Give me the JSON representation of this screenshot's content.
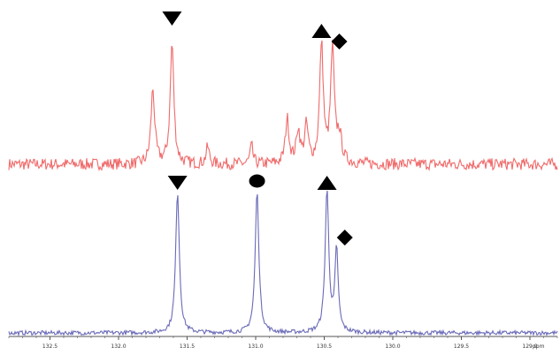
{
  "chart_data": {
    "type": "line",
    "title": "",
    "xlabel": "",
    "ylabel": "",
    "x_unit_label": "ppm",
    "x_reversed": true,
    "xlim": [
      132.8,
      128.8
    ],
    "x_ticks": [
      132.5,
      132.0,
      131.5,
      131.0,
      130.5,
      130.0,
      129.5,
      129.0
    ],
    "x_tick_labels": [
      "132.5",
      "132.0",
      "131.5",
      "131.0",
      "130.5",
      "130.0",
      "129.5",
      "129.0"
    ],
    "grid": false,
    "legend": "none",
    "colors": {
      "top_spectrum": "#f06a6a",
      "bottom_spectrum": "#6a6ab8",
      "markers": "#000000",
      "axis": "#555555"
    },
    "series": [
      {
        "role": "top-spectrum",
        "baseline": 0.0,
        "noise": 0.045,
        "peaks": [
          {
            "x": 131.75,
            "height": 0.57,
            "width": 0.016
          },
          {
            "x": 131.61,
            "height": 0.92,
            "width": 0.016
          },
          {
            "x": 131.35,
            "height": 0.13,
            "width": 0.014
          },
          {
            "x": 131.03,
            "height": 0.14,
            "width": 0.012
          },
          {
            "x": 130.77,
            "height": 0.34,
            "width": 0.016
          },
          {
            "x": 130.69,
            "height": 0.25,
            "width": 0.016
          },
          {
            "x": 130.63,
            "height": 0.28,
            "width": 0.016
          },
          {
            "x": 130.52,
            "height": 0.91,
            "width": 0.016
          },
          {
            "x": 130.44,
            "height": 0.86,
            "width": 0.016
          },
          {
            "x": 130.39,
            "height": 0.2,
            "width": 0.02
          }
        ],
        "markers": [
          {
            "shape": "triangle-down",
            "x": 131.61
          },
          {
            "shape": "triangle-up",
            "x": 130.52
          },
          {
            "shape": "diamond",
            "x": 130.39
          }
        ]
      },
      {
        "role": "bottom-spectrum",
        "baseline": 0.0,
        "noise": 0.015,
        "peaks": [
          {
            "x": 131.57,
            "height": 1.0,
            "width": 0.016
          },
          {
            "x": 130.99,
            "height": 1.0,
            "width": 0.016
          },
          {
            "x": 130.48,
            "height": 1.0,
            "width": 0.016
          },
          {
            "x": 130.41,
            "height": 0.58,
            "width": 0.014
          }
        ],
        "markers": [
          {
            "shape": "triangle-down",
            "x": 131.57
          },
          {
            "shape": "circle",
            "x": 130.99
          },
          {
            "shape": "triangle-up",
            "x": 130.48
          },
          {
            "shape": "diamond",
            "x": 130.35
          }
        ]
      }
    ]
  }
}
